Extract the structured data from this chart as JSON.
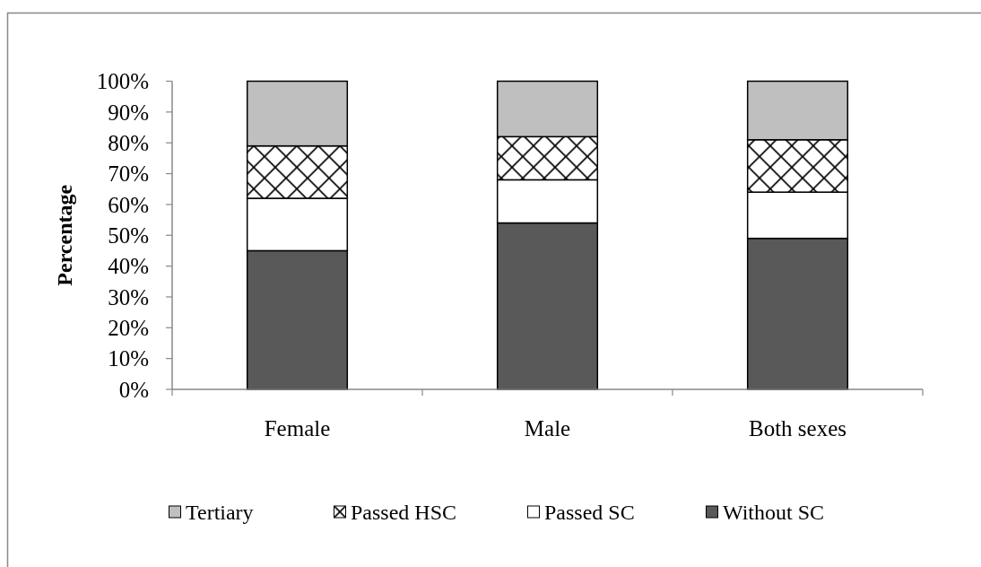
{
  "chart_data": {
    "type": "bar",
    "stacked": true,
    "ylabel": "Percentage",
    "categories": [
      "Female",
      "Male",
      "Both sexes"
    ],
    "series": [
      {
        "name": "Without SC",
        "color": "#595959",
        "values": [
          45,
          54,
          49
        ]
      },
      {
        "name": "Passed SC",
        "color": "#ffffff",
        "values": [
          17,
          14,
          15
        ]
      },
      {
        "name": "Passed HSC",
        "color": "#000000",
        "values": [
          17,
          14,
          17
        ]
      },
      {
        "name": "Tertiary",
        "color": "#bfbfbf",
        "values": [
          21,
          18,
          19
        ]
      }
    ],
    "ylim": [
      0,
      100
    ],
    "yticks": [
      {
        "value": 0,
        "label": "0%"
      },
      {
        "value": 10,
        "label": "10%"
      },
      {
        "value": 20,
        "label": "20%"
      },
      {
        "value": 30,
        "label": "30%"
      },
      {
        "value": 40,
        "label": "40%"
      },
      {
        "value": 50,
        "label": "50%"
      },
      {
        "value": 60,
        "label": "60%"
      },
      {
        "value": 70,
        "label": "70%"
      },
      {
        "value": 80,
        "label": "80%"
      },
      {
        "value": 90,
        "label": "90%"
      },
      {
        "value": 100,
        "label": "100%"
      }
    ],
    "legend": "bottom"
  }
}
